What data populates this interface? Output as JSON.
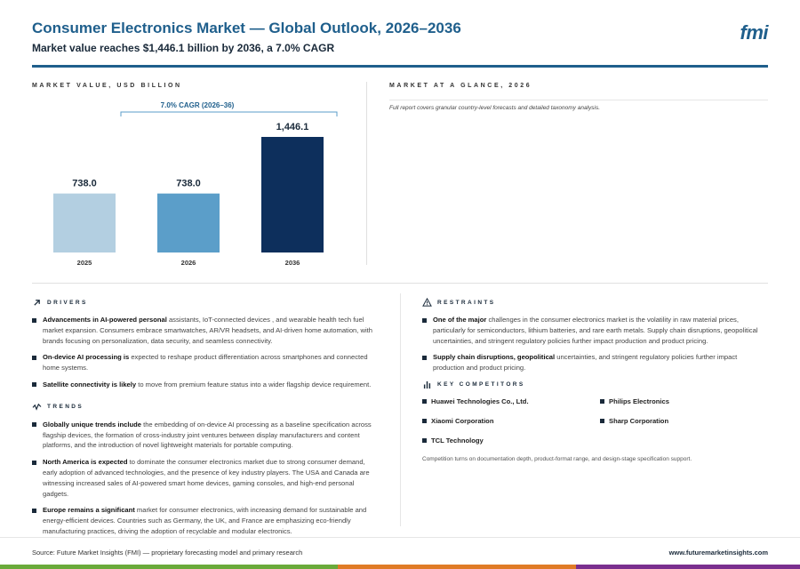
{
  "header": {
    "title": "Consumer Electronics Market — Global Outlook, 2026–2036",
    "subtitle": "Market value reaches $1,446.1 billion by 2036, a 7.0% CAGR",
    "logo": "fmi"
  },
  "chart_section": {
    "label": "MARKET VALUE, USD BILLION"
  },
  "glance": {
    "label": "MARKET AT A GLANCE, 2026",
    "note": "Full report covers granular country-level forecasts and detailed taxonomy analysis."
  },
  "chart_data": {
    "type": "bar",
    "categories": [
      "2025",
      "2026",
      "2036"
    ],
    "values": [
      738.0,
      738.0,
      1446.1
    ],
    "value_labels": [
      "738.0",
      "738.0",
      "1,446.1"
    ],
    "colors": [
      "#b3cfe1",
      "#5b9ec9",
      "#0d2f5c"
    ],
    "annotation": "7.0% CAGR (2026–36)",
    "ylim": [
      0,
      1446.1
    ],
    "grid": false,
    "legend": "none"
  },
  "drivers": {
    "label": "DRIVERS",
    "items": [
      {
        "bold": "Advancements in AI-powered personal",
        "text": " assistants, IoT-connected devices , and wearable health tech fuel market expansion. Consumers embrace smartwatches, AR/VR headsets, and AI-driven home automation, with brands focusing on personalization, data security, and seamless connectivity."
      },
      {
        "bold": "On-device AI processing is",
        "text": " expected to reshape product differentiation across smartphones and connected home systems."
      },
      {
        "bold": "Satellite connectivity is likely",
        "text": " to move from premium feature status into a wider flagship device requirement."
      }
    ]
  },
  "trends": {
    "label": "TRENDS",
    "items": [
      {
        "bold": "Globally unique trends include",
        "text": " the embedding of on-device AI processing as a baseline specification across flagship devices, the formation of cross-industry joint ventures between display manufacturers and content platforms, and the introduction of novel lightweight materials for portable computing."
      },
      {
        "bold": "North America is expected",
        "text": " to dominate the consumer electronics market due to strong consumer demand, early adoption of advanced technologies, and the presence of key industry players. The USA and Canada are witnessing increased sales of AI-powered smart home devices, gaming consoles, and high-end personal gadgets."
      },
      {
        "bold": "Europe remains a significant",
        "text": " market for consumer electronics, with increasing demand for sustainable and energy-efficient devices. Countries such as Germany, the UK, and France are emphasizing eco-friendly manufacturing practices, driving the adoption of recyclable and modular electronics."
      }
    ]
  },
  "restraints": {
    "label": "RESTRAINTS",
    "items": [
      {
        "bold": "One of the major",
        "text": " challenges in the consumer electronics market is the volatility in raw material prices, particularly for semiconductors, lithium batteries, and rare earth metals. Supply chain disruptions, geopolitical uncertainties, and stringent regulatory policies further impact production and product pricing."
      },
      {
        "bold": "Supply chain disruptions, geopolitical",
        "text": " uncertainties, and stringent regulatory policies further impact production and product pricing."
      }
    ]
  },
  "competitors": {
    "label": "KEY COMPETITORS",
    "items": [
      "Huawei Technologies Co., Ltd.",
      "Philips Electronics",
      "Xiaomi Corporation",
      "Sharp Corporation",
      "TCL Technology"
    ],
    "note": "Competition turns on documentation depth, product-format range, and design-stage specification support."
  },
  "footer": {
    "source": "Source: Future Market Insights (FMI) — proprietary forecasting model and primary research",
    "url": "www.futuremarketinsights.com",
    "stripe_colors": [
      "#6aaa3a",
      "#e07b26",
      "#7a2f8e"
    ]
  }
}
